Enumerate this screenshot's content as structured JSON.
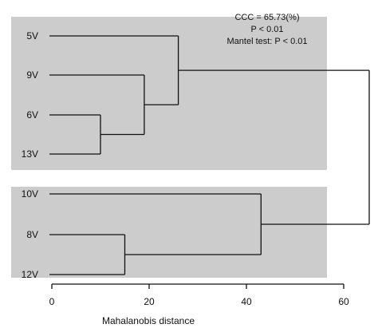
{
  "chart_data": {
    "type": "dendrogram",
    "xlabel": "Mahalanobis distance",
    "xlim": [
      0,
      60
    ],
    "xticks": [
      0,
      20,
      40,
      60
    ],
    "leaves": [
      "5V",
      "9V",
      "6V",
      "13V",
      "10V",
      "8V",
      "12V"
    ],
    "clusters": [
      [
        "5V",
        "9V",
        "6V",
        "13V"
      ],
      [
        "10V",
        "8V",
        "12V"
      ]
    ],
    "merges": [
      {
        "a": "6V",
        "b": "13V",
        "height": 10
      },
      {
        "a": "9V",
        "b": "6V+13V",
        "height": 19
      },
      {
        "a": "5V",
        "b": "9V+6V+13V",
        "height": 26
      },
      {
        "a": "8V",
        "b": "12V",
        "height": 15
      },
      {
        "a": "10V",
        "b": "8V+12V",
        "height": 43
      },
      {
        "a": "cluster-1",
        "b": "cluster-2",
        "height": 60
      }
    ],
    "annotations": [
      "CCC = 65.73(%)",
      "P < 0.01",
      "Mantel test: P < 0.01"
    ],
    "background_color": "#cccccc",
    "line_color": "#111111"
  }
}
